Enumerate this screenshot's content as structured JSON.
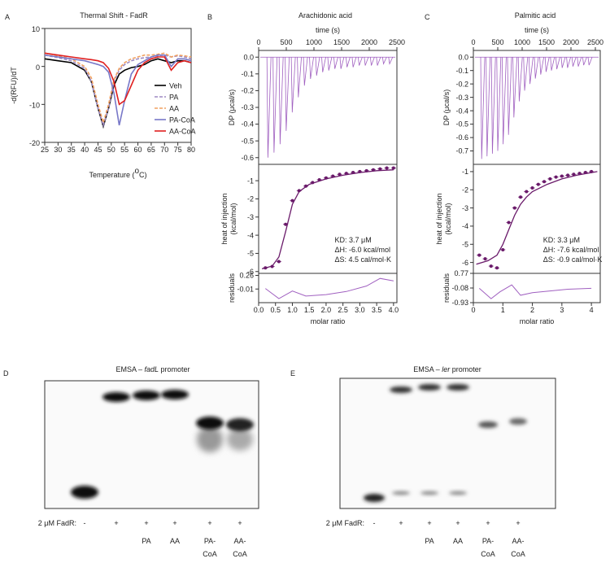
{
  "chart_data": [
    {
      "panel": "A",
      "type": "line",
      "title": "Thermal Shift - FadR",
      "x_label": [
        "Temperature (",
        "o",
        "C)"
      ],
      "y_label": "-d(RFU)/dT",
      "x": [
        25,
        30,
        35,
        40,
        42.5,
        45,
        47,
        49,
        51,
        53,
        55,
        57.5,
        60,
        62.5,
        65,
        67.5,
        70,
        72.5,
        75,
        77.5,
        80
      ],
      "xlim": [
        25,
        80
      ],
      "xticks": [
        25,
        30,
        35,
        40,
        45,
        50,
        55,
        60,
        65,
        70,
        75,
        80
      ],
      "ylim": [
        -20,
        10
      ],
      "yticks": [
        -20,
        -10,
        0,
        10
      ],
      "legend": "right",
      "series": [
        {
          "name": "Veh",
          "color": "#000000",
          "style": "solid",
          "values": [
            2,
            1.5,
            1,
            -1,
            -4,
            -11,
            -15.8,
            -11,
            -5,
            -2,
            -1,
            -0.3,
            0,
            0.5,
            1.5,
            2,
            1.5,
            1,
            1.5,
            1.5,
            1
          ]
        },
        {
          "name": "PA",
          "color": "#9d8ac4",
          "style": "dashed",
          "values": [
            3,
            2.3,
            1.5,
            -0.5,
            -4,
            -11,
            -15.5,
            -11,
            -4,
            -1,
            0.5,
            1.5,
            2,
            2.3,
            2.5,
            2.8,
            3,
            2.5,
            2.8,
            2.5,
            2
          ]
        },
        {
          "name": "AA",
          "color": "#f0a060",
          "style": "dashed",
          "values": [
            3.5,
            2.8,
            2,
            0,
            -3,
            -10,
            -14.8,
            -10,
            -3.5,
            -0.5,
            1,
            2,
            2.5,
            3,
            3,
            3.2,
            3.5,
            2.5,
            3,
            2.8,
            2.5
          ]
        },
        {
          "name": "PA-CoA",
          "color": "#7878c8",
          "style": "solid",
          "values": [
            3,
            2.5,
            2,
            1.5,
            1,
            0.5,
            0,
            -1.5,
            -7,
            -15.5,
            -9,
            -2,
            0.5,
            1.5,
            2.5,
            3,
            3,
            0,
            2,
            2,
            1.5
          ]
        },
        {
          "name": "AA-CoA",
          "color": "#e02020",
          "style": "solid",
          "values": [
            3.5,
            3,
            2.5,
            2,
            1.8,
            1.5,
            1,
            -0.5,
            -4,
            -10,
            -9,
            -5,
            -1,
            1,
            2,
            2.5,
            2.5,
            -1,
            1,
            1.5,
            1
          ]
        }
      ]
    },
    {
      "panel": "B",
      "type": "itc",
      "title": "Arachidonic acid",
      "thermogram": {
        "x_label": "time (s)",
        "y_label": "DP (μcal/s)",
        "color": "#a060c0",
        "x": [
          150,
          260,
          370,
          480,
          590,
          700,
          810,
          920,
          1030,
          1140,
          1250,
          1360,
          1470,
          1580,
          1690,
          1800,
          1910,
          2020,
          2130,
          2240,
          2350
        ],
        "values": [
          -0.6,
          -0.57,
          -0.52,
          -0.44,
          -0.33,
          -0.24,
          -0.17,
          -0.13,
          -0.11,
          -0.09,
          -0.08,
          -0.07,
          -0.07,
          -0.06,
          -0.06,
          -0.05,
          -0.05,
          -0.05,
          -0.05,
          -0.04,
          -0.04
        ],
        "xlim": [
          0,
          2500
        ],
        "xticks": [
          0,
          500,
          1000,
          1500,
          2000,
          2500
        ],
        "ylim": [
          -0.64,
          0.04
        ],
        "yticks": [
          {
            "value": 0,
            "label": "0.0"
          },
          -0.1,
          -0.2,
          -0.3,
          -0.4,
          -0.5,
          -0.6
        ]
      },
      "isotherm": {
        "y_label": [
          "heat of injection",
          "(kcal/mol)"
        ],
        "color": "#6a1a6a",
        "x": [
          0.2,
          0.4,
          0.6,
          0.8,
          1.0,
          1.2,
          1.4,
          1.6,
          1.8,
          2.0,
          2.2,
          2.4,
          2.6,
          2.8,
          3.0,
          3.2,
          3.4,
          3.6,
          3.8,
          4.0
        ],
        "values": [
          -5.8,
          -5.72,
          -5.45,
          -3.4,
          -2.1,
          -1.55,
          -1.3,
          -1.1,
          -0.95,
          -0.85,
          -0.75,
          -0.65,
          -0.6,
          -0.55,
          -0.5,
          -0.45,
          -0.4,
          -0.35,
          -0.3,
          -0.3
        ],
        "fit": {
          "x": [
            0.1,
            0.4,
            0.6,
            0.8,
            1.0,
            1.2,
            1.5,
            2.0,
            2.5,
            3.0,
            3.5,
            4.0
          ],
          "values": [
            -5.85,
            -5.7,
            -5.2,
            -3.8,
            -2.3,
            -1.6,
            -1.2,
            -0.9,
            -0.7,
            -0.55,
            -0.45,
            -0.4
          ]
        },
        "ylim": [
          -6.1,
          -0.1
        ],
        "yticks": [
          -1,
          -2,
          -3,
          -4,
          -5,
          -6
        ],
        "annotations": [
          "KD: 3.7 μM",
          "ΔH: -6.0 kcal/mol",
          "ΔS: 4.5 cal/mol·K"
        ]
      },
      "residuals": {
        "y_label": "residuals",
        "x_label": "molar ratio",
        "color": "#a060c0",
        "x": [
          0.2,
          0.6,
          1.0,
          1.4,
          2.0,
          2.6,
          3.2,
          3.6,
          4.0
        ],
        "values": [
          0.0,
          -0.2,
          -0.05,
          -0.15,
          -0.12,
          -0.06,
          0.05,
          0.2,
          0.15
        ],
        "xlim": [
          0,
          4.1
        ],
        "xticks": [
          {
            "value": 0,
            "label": "0.0"
          },
          0.5,
          {
            "value": 1,
            "label": "1.0"
          },
          1.5,
          {
            "value": 2,
            "label": "2.0"
          },
          2.5,
          {
            "value": 3,
            "label": "3.0"
          },
          3.5,
          {
            "value": 4,
            "label": "4.0"
          }
        ],
        "ylim": [
          -0.28,
          0.3
        ],
        "yticks": [
          0.26,
          -0.01
        ]
      }
    },
    {
      "panel": "C",
      "type": "itc",
      "title": "Palmitic acid",
      "thermogram": {
        "x_label": "time (s)",
        "y_label": "DP (μcal/s)",
        "color": "#a060c0",
        "x": [
          150,
          260,
          370,
          480,
          590,
          700,
          810,
          920,
          1030,
          1140,
          1250,
          1360,
          1470,
          1580,
          1690,
          1800,
          1910,
          2020,
          2130,
          2240,
          2350
        ],
        "values": [
          -0.76,
          -0.74,
          -0.72,
          -0.7,
          -0.65,
          -0.58,
          -0.45,
          -0.33,
          -0.25,
          -0.2,
          -0.16,
          -0.13,
          -0.11,
          -0.1,
          -0.09,
          -0.08,
          -0.08,
          -0.07,
          -0.07,
          -0.06,
          -0.06
        ],
        "xlim": [
          0,
          2600
        ],
        "xticks": [
          0,
          500,
          1000,
          1500,
          2000,
          2500
        ],
        "ylim": [
          -0.8,
          0.05
        ],
        "yticks": [
          {
            "value": 0,
            "label": "0.0"
          },
          -0.1,
          -0.2,
          -0.3,
          -0.4,
          -0.5,
          -0.6,
          -0.7
        ]
      },
      "isotherm": {
        "y_label": [
          "heat of injection",
          "(kcal/mol)"
        ],
        "color": "#6a1a6a",
        "x": [
          0.2,
          0.4,
          0.6,
          0.8,
          1.0,
          1.2,
          1.4,
          1.6,
          1.8,
          2.0,
          2.2,
          2.4,
          2.6,
          2.8,
          3.0,
          3.2,
          3.4,
          3.6,
          3.8,
          4.0
        ],
        "values": [
          -5.6,
          -5.8,
          -6.2,
          -6.3,
          -5.3,
          -3.8,
          -3.0,
          -2.4,
          -2.1,
          -1.9,
          -1.7,
          -1.55,
          -1.4,
          -1.3,
          -1.25,
          -1.2,
          -1.15,
          -1.1,
          -1.05,
          -1.0
        ],
        "fit": {
          "x": [
            0.1,
            0.5,
            0.8,
            1.0,
            1.2,
            1.4,
            1.6,
            1.8,
            2.0,
            2.5,
            3.0,
            3.5,
            4.2
          ],
          "values": [
            -6.1,
            -5.9,
            -5.6,
            -5.0,
            -4.2,
            -3.4,
            -2.8,
            -2.4,
            -2.1,
            -1.7,
            -1.4,
            -1.2,
            -1.0
          ]
        },
        "ylim": [
          -6.6,
          -0.6
        ],
        "yticks": [
          -1,
          -2,
          -3,
          -4,
          -5,
          -6
        ],
        "annotations": [
          "KD: 3.3 μM",
          "ΔH: -7.6 kcal/mol",
          "ΔS: -0.9 cal/mol·K"
        ]
      },
      "residuals": {
        "y_label": "residuals",
        "x_label": "molar ratio",
        "color": "#a060c0",
        "x": [
          0.2,
          0.6,
          0.9,
          1.3,
          1.6,
          2.0,
          2.6,
          3.2,
          4.0
        ],
        "values": [
          -0.1,
          -0.7,
          -0.3,
          0.1,
          -0.5,
          -0.35,
          -0.25,
          -0.15,
          -0.1
        ],
        "xlim": [
          0,
          4.3
        ],
        "xticks": [
          0,
          1,
          2,
          3,
          4
        ],
        "ylim": [
          -0.93,
          0.77
        ],
        "yticks": [
          0.77,
          -0.08,
          -0.93
        ]
      }
    }
  ],
  "gels": [
    {
      "panel": "D",
      "title": [
        "EMSA – ",
        "fadL",
        " promoter"
      ],
      "row_label": "2 μM FadR:",
      "lanes": [
        "-",
        "+",
        "+",
        "+",
        "+",
        "+"
      ],
      "ligands": [
        null,
        null,
        [
          "PA"
        ],
        [
          "AA"
        ],
        [
          "PA-",
          "CoA"
        ],
        [
          "AA-",
          "CoA"
        ]
      ]
    },
    {
      "panel": "E",
      "title": [
        "EMSA – ",
        "ler",
        " promoter"
      ],
      "row_label": "2 μM FadR:",
      "lanes": [
        "-",
        "+",
        "+",
        "+",
        "+",
        "+"
      ],
      "ligands": [
        null,
        null,
        [
          "PA"
        ],
        [
          "AA"
        ],
        [
          "PA-",
          "CoA"
        ],
        [
          "AA-",
          "CoA"
        ]
      ]
    }
  ]
}
